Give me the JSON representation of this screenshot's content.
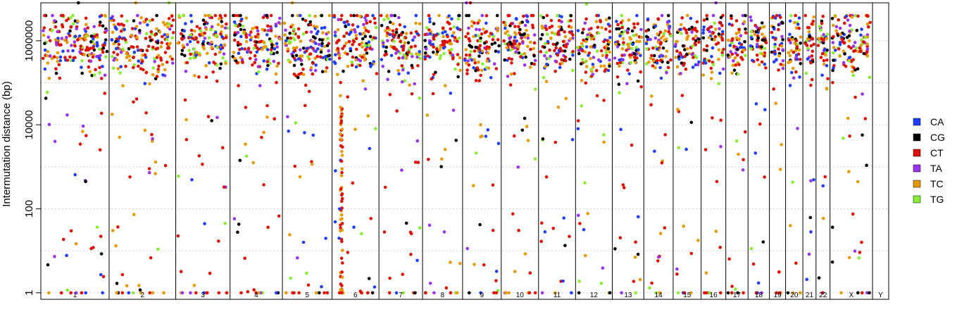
{
  "chart_data": {
    "type": "scatter",
    "title": "",
    "xlabel": "",
    "ylabel": "Intermutation distance (bp)",
    "y_scale": "log10",
    "ylim": [
      0.7,
      8000000
    ],
    "y_ticks": [
      {
        "value": 1,
        "label": "1"
      },
      {
        "value": 100,
        "label": "100"
      },
      {
        "value": 10000,
        "label": "10000"
      },
      {
        "value": 1000000,
        "label": "1000000"
      }
    ],
    "grid": "horizontal dotted at 1, 10, 100, 1000, 10000, 100000, 1000000, 10000000",
    "legend_position": "right",
    "chromosomes": [
      {
        "label": "1",
        "width": 249
      },
      {
        "label": "2",
        "width": 243
      },
      {
        "label": "3",
        "width": 198
      },
      {
        "label": "4",
        "width": 191
      },
      {
        "label": "5",
        "width": 181
      },
      {
        "label": "6",
        "width": 171
      },
      {
        "label": "7",
        "width": 159
      },
      {
        "label": "8",
        "width": 146
      },
      {
        "label": "9",
        "width": 141
      },
      {
        "label": "10",
        "width": 136
      },
      {
        "label": "11",
        "width": 135
      },
      {
        "label": "12",
        "width": 134
      },
      {
        "label": "13",
        "width": 115
      },
      {
        "label": "14",
        "width": 107
      },
      {
        "label": "15",
        "width": 102
      },
      {
        "label": "16",
        "width": 90
      },
      {
        "label": "17",
        "width": 81
      },
      {
        "label": "18",
        "width": 78
      },
      {
        "label": "19",
        "width": 59
      },
      {
        "label": "20",
        "width": 63
      },
      {
        "label": "21",
        "width": 48
      },
      {
        "label": "22",
        "width": 51
      },
      {
        "label": "X",
        "width": 155
      },
      {
        "label": "Y",
        "width": 59
      }
    ],
    "series": [
      {
        "name": "CA",
        "color": "#1f3fff"
      },
      {
        "name": "CG",
        "color": "#000000"
      },
      {
        "name": "CT",
        "color": "#dd1100"
      },
      {
        "name": "TA",
        "color": "#9933ee"
      },
      {
        "name": "TC",
        "color": "#e69a00"
      },
      {
        "name": "TG",
        "color": "#88ee33"
      }
    ],
    "outliers": [
      {
        "chrom": "1",
        "frac": 0.55,
        "y": 20000000,
        "series": "CG"
      },
      {
        "chrom": "5",
        "frac": 0.2,
        "y": 10000000,
        "series": "TC"
      },
      {
        "chrom": "9",
        "frac": 0.1,
        "y": 20000000,
        "series": "TA"
      },
      {
        "chrom": "9",
        "frac": 0.2,
        "y": 8000000,
        "series": "CT"
      },
      {
        "chrom": "16",
        "frac": 0.6,
        "y": 15000000,
        "series": "TA"
      },
      {
        "chrom": "2",
        "frac": 0.4,
        "y": 8000000,
        "series": "TC"
      },
      {
        "chrom": "2",
        "frac": 0.9,
        "y": 8000000,
        "series": "TG"
      },
      {
        "chrom": "12",
        "frac": 0.3,
        "y": 7500000,
        "series": "TG"
      },
      {
        "chrom": "6",
        "frac": 0.15,
        "y": 20,
        "series": "CA"
      },
      {
        "chrom": "6",
        "frac": 0.16,
        "y": 100,
        "series": "CA"
      }
    ]
  }
}
